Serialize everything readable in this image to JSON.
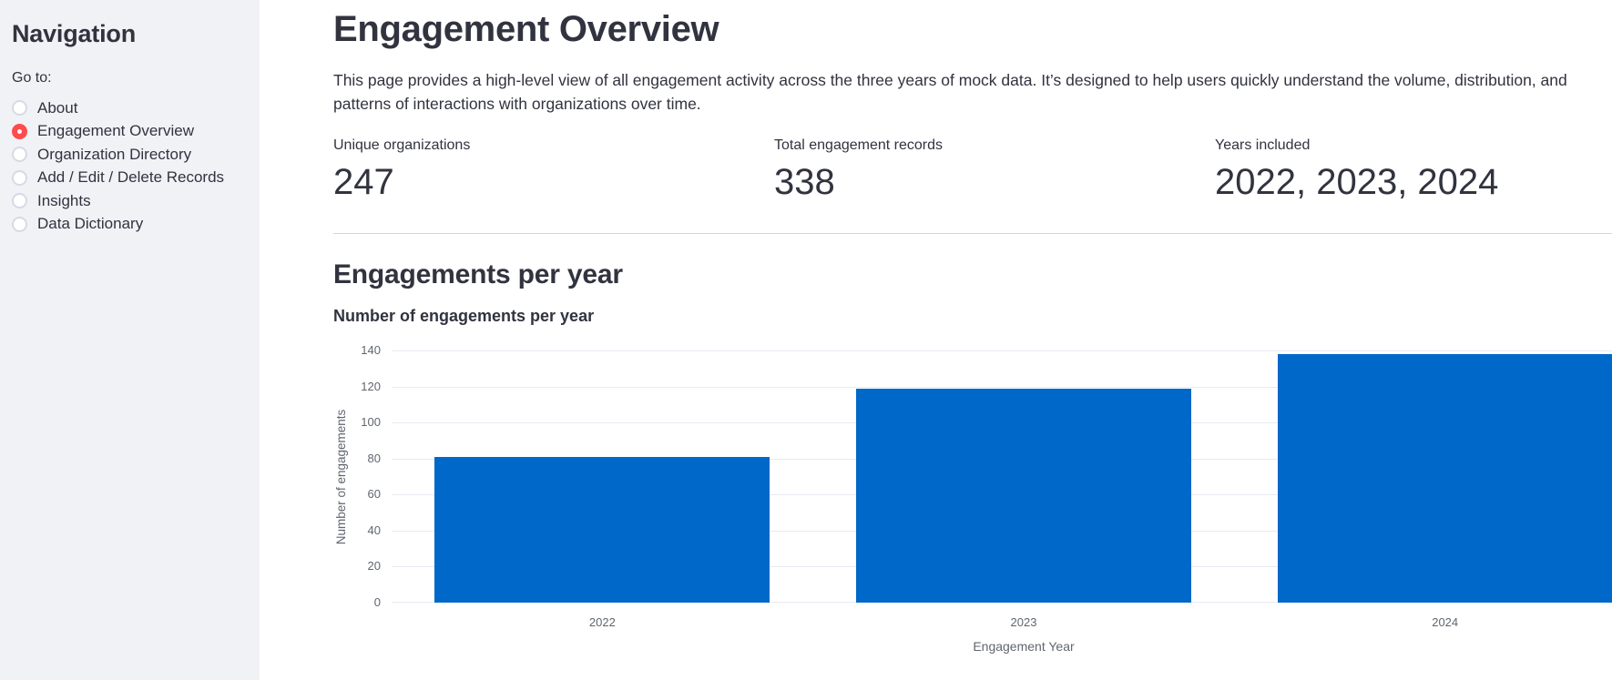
{
  "colors": {
    "accent_red": "#ff4b4b",
    "bar_blue": "#0068c9",
    "sidebar_bg": "#f0f2f6",
    "text": "#31333f",
    "muted_axis_text": "#60666f",
    "gridline": "#e6ebf2"
  },
  "sidebar": {
    "title": "Navigation",
    "nav_label": "Go to:",
    "options": [
      {
        "label": "About",
        "selected": false
      },
      {
        "label": "Engagement Overview",
        "selected": true
      },
      {
        "label": "Organization Directory",
        "selected": false
      },
      {
        "label": "Add / Edit / Delete Records",
        "selected": false
      },
      {
        "label": "Insights",
        "selected": false
      },
      {
        "label": "Data Dictionary",
        "selected": false
      }
    ]
  },
  "main": {
    "title": "Engagement Overview",
    "description": "This page provides a high-level view of all engagement activity across the three years of mock data. It’s designed to help users quickly understand the volume, distribution, and patterns of interactions with organizations over time.",
    "metrics": [
      {
        "label": "Unique organizations",
        "value": "247"
      },
      {
        "label": "Total engagement records",
        "value": "338"
      },
      {
        "label": "Years included",
        "value": "2022, 2023, 2024"
      }
    ],
    "section_title": "Engagements per year"
  },
  "chart_data": {
    "type": "bar",
    "title": "Number of engagements per year",
    "categories": [
      "2022",
      "2023",
      "2024"
    ],
    "values": [
      81,
      119,
      138
    ],
    "xlabel": "Engagement Year",
    "ylabel": "Number of engagements",
    "ylim": [
      0,
      140
    ],
    "yticks": [
      0,
      20,
      40,
      60,
      80,
      100,
      120,
      140
    ],
    "bar_color": "#0068c9",
    "grid": true,
    "legend": false
  }
}
